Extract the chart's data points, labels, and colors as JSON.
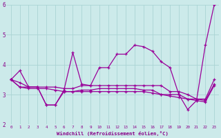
{
  "xlabel": "Windchill (Refroidissement éolien,°C)",
  "xlim": [
    -0.5,
    23.5
  ],
  "ylim": [
    2,
    6
  ],
  "yticks": [
    2,
    3,
    4,
    5,
    6
  ],
  "xticks": [
    0,
    1,
    2,
    3,
    4,
    5,
    6,
    7,
    8,
    9,
    10,
    11,
    12,
    13,
    14,
    15,
    16,
    17,
    18,
    19,
    20,
    21,
    22,
    23
  ],
  "bg_color": "#cceaea",
  "grid_color": "#aad4d4",
  "line_color": "#990099",
  "series": [
    [
      3.5,
      3.8,
      3.25,
      3.25,
      2.65,
      2.65,
      3.15,
      4.4,
      3.35,
      3.3,
      3.9,
      3.9,
      4.35,
      4.35,
      4.65,
      4.6,
      4.45,
      4.1,
      3.9,
      3.0,
      2.5,
      2.8,
      4.65,
      6.0
    ],
    [
      3.5,
      3.25,
      3.25,
      3.25,
      3.25,
      3.25,
      3.2,
      3.2,
      3.3,
      3.3,
      3.3,
      3.3,
      3.3,
      3.3,
      3.3,
      3.3,
      3.3,
      3.3,
      3.1,
      3.1,
      3.0,
      2.85,
      2.85,
      3.5
    ],
    [
      3.5,
      3.4,
      3.25,
      3.25,
      2.65,
      2.65,
      3.1,
      3.1,
      3.15,
      3.15,
      3.2,
      3.2,
      3.2,
      3.2,
      3.2,
      3.15,
      3.15,
      3.0,
      3.0,
      3.0,
      2.85,
      2.85,
      2.8,
      3.35
    ],
    [
      3.5,
      3.25,
      3.2,
      3.2,
      3.2,
      3.15,
      3.1,
      3.1,
      3.1,
      3.1,
      3.1,
      3.1,
      3.1,
      3.1,
      3.1,
      3.1,
      3.05,
      3.0,
      2.95,
      2.9,
      2.85,
      2.8,
      2.75,
      3.3
    ]
  ]
}
